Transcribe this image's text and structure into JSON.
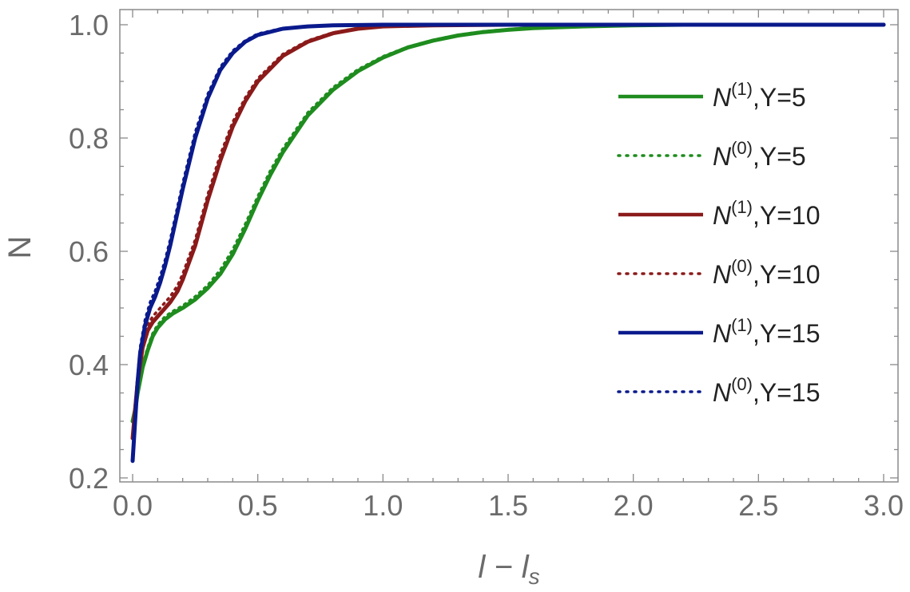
{
  "chart_data": {
    "type": "line",
    "xlabel": "l − l",
    "xlabel_sub": "s",
    "ylabel": "N",
    "xlim": [
      0,
      3
    ],
    "ylim": [
      0.2,
      1.0
    ],
    "grid": false,
    "legend_position": "right",
    "x_ticks": [
      "0.0",
      "0.5",
      "1.0",
      "1.5",
      "2.0",
      "2.5",
      "3.0"
    ],
    "x_tick_values": [
      0,
      0.5,
      1.0,
      1.5,
      2.0,
      2.5,
      3.0
    ],
    "y_ticks": [
      "0.2",
      "0.4",
      "0.6",
      "0.8",
      "1.0"
    ],
    "y_tick_values": [
      0.2,
      0.4,
      0.6,
      0.8,
      1.0
    ],
    "series": [
      {
        "name": "N(1),Y=5",
        "base": "N",
        "sup": "(1)",
        "suffix": ",Y=5",
        "color": "#1e8c1e",
        "style": "solid",
        "x": [
          0,
          0.01,
          0.02,
          0.04,
          0.06,
          0.08,
          0.1,
          0.13,
          0.16,
          0.2,
          0.25,
          0.3,
          0.35,
          0.4,
          0.45,
          0.5,
          0.55,
          0.6,
          0.7,
          0.8,
          0.9,
          1.0,
          1.1,
          1.2,
          1.3,
          1.4,
          1.5,
          1.6,
          1.8,
          2.0,
          2.2,
          2.5,
          3.0
        ],
        "y": [
          0.3,
          0.32,
          0.35,
          0.395,
          0.425,
          0.45,
          0.465,
          0.48,
          0.49,
          0.5,
          0.515,
          0.535,
          0.56,
          0.595,
          0.64,
          0.69,
          0.735,
          0.775,
          0.84,
          0.885,
          0.918,
          0.942,
          0.96,
          0.972,
          0.981,
          0.987,
          0.991,
          0.994,
          0.997,
          0.999,
          1.0,
          1.0,
          1.0
        ]
      },
      {
        "name": "N(0),Y=5",
        "base": "N",
        "sup": "(0)",
        "suffix": ",Y=5",
        "color": "#1e8c1e",
        "style": "dotted",
        "x": [
          0,
          0.01,
          0.02,
          0.04,
          0.06,
          0.08,
          0.1,
          0.13,
          0.16,
          0.2,
          0.25,
          0.3,
          0.35,
          0.4,
          0.45,
          0.5,
          0.55,
          0.6,
          0.7,
          0.8,
          0.9,
          1.0,
          1.1,
          1.2,
          1.3,
          1.4,
          1.5,
          1.6,
          1.8,
          2.0,
          2.2,
          2.5,
          3.0
        ],
        "y": [
          0.3,
          0.325,
          0.355,
          0.4,
          0.43,
          0.455,
          0.47,
          0.485,
          0.494,
          0.504,
          0.52,
          0.54,
          0.567,
          0.603,
          0.648,
          0.697,
          0.742,
          0.781,
          0.845,
          0.889,
          0.921,
          0.944,
          0.961,
          0.973,
          0.982,
          0.988,
          0.992,
          0.995,
          0.998,
          0.999,
          1.0,
          1.0,
          1.0
        ]
      },
      {
        "name": "N(1),Y=10",
        "base": "N",
        "sup": "(1)",
        "suffix": ",Y=10",
        "color": "#8b1a1a",
        "style": "solid",
        "x": [
          0,
          0.01,
          0.02,
          0.04,
          0.06,
          0.08,
          0.1,
          0.12,
          0.15,
          0.18,
          0.2,
          0.25,
          0.3,
          0.35,
          0.4,
          0.45,
          0.5,
          0.6,
          0.7,
          0.8,
          0.9,
          1.0,
          1.2,
          1.5,
          2.0,
          3.0
        ],
        "y": [
          0.27,
          0.32,
          0.37,
          0.43,
          0.46,
          0.475,
          0.485,
          0.495,
          0.51,
          0.53,
          0.55,
          0.61,
          0.69,
          0.76,
          0.82,
          0.865,
          0.9,
          0.945,
          0.97,
          0.985,
          0.993,
          0.997,
          0.999,
          1.0,
          1.0,
          1.0
        ]
      },
      {
        "name": "N(0),Y=10",
        "base": "N",
        "sup": "(0)",
        "suffix": ",Y=10",
        "color": "#8b1a1a",
        "style": "dotted",
        "x": [
          0,
          0.01,
          0.02,
          0.04,
          0.06,
          0.08,
          0.1,
          0.12,
          0.15,
          0.18,
          0.2,
          0.25,
          0.3,
          0.35,
          0.4,
          0.45,
          0.5,
          0.6,
          0.7,
          0.8,
          0.9,
          1.0,
          1.2,
          1.5,
          2.0,
          3.0
        ],
        "y": [
          0.27,
          0.33,
          0.38,
          0.44,
          0.47,
          0.485,
          0.495,
          0.505,
          0.52,
          0.54,
          0.56,
          0.62,
          0.7,
          0.77,
          0.828,
          0.871,
          0.905,
          0.948,
          0.972,
          0.986,
          0.994,
          0.997,
          0.999,
          1.0,
          1.0,
          1.0
        ]
      },
      {
        "name": "N(1),Y=15",
        "base": "N",
        "sup": "(1)",
        "suffix": ",Y=15",
        "color": "#0a1a8c",
        "style": "solid",
        "x": [
          0,
          0.01,
          0.02,
          0.03,
          0.05,
          0.07,
          0.09,
          0.11,
          0.13,
          0.15,
          0.18,
          0.2,
          0.25,
          0.3,
          0.35,
          0.4,
          0.45,
          0.5,
          0.6,
          0.7,
          0.8,
          1.0,
          1.5,
          2.0,
          3.0
        ],
        "y": [
          0.23,
          0.3,
          0.37,
          0.42,
          0.47,
          0.5,
          0.52,
          0.545,
          0.575,
          0.61,
          0.67,
          0.71,
          0.8,
          0.87,
          0.92,
          0.95,
          0.97,
          0.982,
          0.993,
          0.997,
          0.999,
          1.0,
          1.0,
          1.0,
          1.0
        ]
      },
      {
        "name": "N(0),Y=15",
        "base": "N",
        "sup": "(0)",
        "suffix": ",Y=15",
        "color": "#0a1a8c",
        "style": "dotted",
        "x": [
          0,
          0.01,
          0.02,
          0.03,
          0.05,
          0.07,
          0.09,
          0.11,
          0.13,
          0.15,
          0.18,
          0.2,
          0.25,
          0.3,
          0.35,
          0.4,
          0.45,
          0.5,
          0.6,
          0.7,
          0.8,
          1.0,
          1.5,
          2.0,
          3.0
        ],
        "y": [
          0.23,
          0.31,
          0.38,
          0.43,
          0.48,
          0.51,
          0.53,
          0.555,
          0.585,
          0.62,
          0.68,
          0.72,
          0.81,
          0.877,
          0.925,
          0.954,
          0.972,
          0.984,
          0.994,
          0.997,
          0.999,
          1.0,
          1.0,
          1.0,
          1.0
        ]
      }
    ]
  }
}
